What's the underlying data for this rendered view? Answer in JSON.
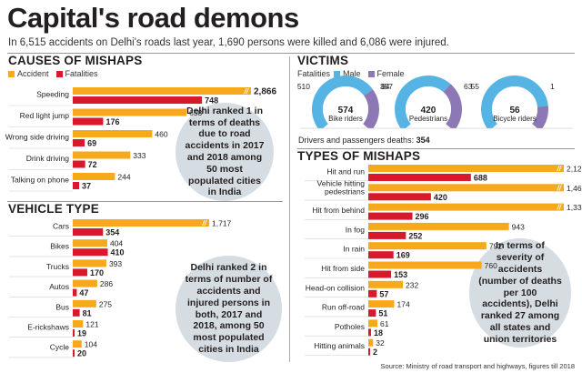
{
  "title": "Capital's road demons",
  "subtitle": "In 6,515 accidents on Delhi's roads last year, 1,690 persons were killed and 6,086 were injured.",
  "colors": {
    "accident": "#f7a81b",
    "fatality": "#d7192b",
    "male": "#56b4e4",
    "female": "#8c78b4",
    "circle": "#d6dde2"
  },
  "legend": {
    "accident": "Accident",
    "fatalities": "Fatalities",
    "victims_fatalities": "Fatalities",
    "male": "Male",
    "female": "Female"
  },
  "notes": {
    "causes": "Delhi ranked 1 in terms of deaths due to road accidents in 2017 and 2018 among 50 most populated cities in India",
    "vehicle": "Delhi ranked 2 in terms of number of accidents and injured persons in both, 2017 and 2018, among 50 most populated cities in India",
    "mishaps": "In terms of severity of accidents (number of deaths per 100 accidents), Delhi ranked 27 among all states and union territories"
  },
  "drivers_note": {
    "label": "Drivers and passengers deaths:",
    "value": "354"
  },
  "source": "Source: Ministry of road transport and highways, figures till 2018",
  "chart_data": [
    {
      "type": "bar",
      "title": "CAUSES OF MISHAPS",
      "categories": [
        "Speeding",
        "Red light jump",
        "Wrong side driving",
        "Drink driving",
        "Talking on phone"
      ],
      "series": [
        {
          "name": "Accident",
          "values": [
            2866,
            658,
            460,
            333,
            244
          ],
          "labels": [
            "2,866",
            "658",
            "460",
            "333",
            "244"
          ]
        },
        {
          "name": "Fatalities",
          "values": [
            748,
            176,
            69,
            72,
            37
          ],
          "labels": [
            "748",
            "176",
            "69",
            "72",
            "37"
          ]
        }
      ]
    },
    {
      "type": "bar",
      "title": "VEHICLE TYPE",
      "categories": [
        "Cars",
        "Bikes",
        "Trucks",
        "Autos",
        "Bus",
        "E-rickshaws",
        "Cycle"
      ],
      "series": [
        {
          "name": "Accident",
          "values": [
            1717,
            404,
            393,
            286,
            275,
            121,
            104
          ],
          "labels": [
            "1,717",
            "404",
            "393",
            "286",
            "275",
            "121",
            "104"
          ]
        },
        {
          "name": "Fatalities",
          "values": [
            354,
            410,
            170,
            47,
            81,
            19,
            20
          ],
          "labels": [
            "354",
            "410",
            "170",
            "47",
            "81",
            "19",
            "20"
          ]
        }
      ]
    },
    {
      "type": "pie",
      "title": "VICTIMS",
      "groups": [
        {
          "label": "Bike riders",
          "total": "574",
          "male": 510,
          "female": 64,
          "male_label": "510",
          "female_label": "64"
        },
        {
          "label": "Pedestrians",
          "total": "420",
          "male": 357,
          "female": 63,
          "male_label": "357",
          "female_label": "63"
        },
        {
          "label": "Bicycle riders",
          "total": "56",
          "male": 55,
          "female": 1,
          "male_label": "55",
          "female_label": "1"
        }
      ]
    },
    {
      "type": "bar",
      "title": "TYPES OF MISHAPS",
      "categories": [
        "Hit and run",
        "Vehicle hitting pedestrians",
        "Hit from behind",
        "In fog",
        "In rain",
        "Hit from side",
        "Head-on collision",
        "Run off-road",
        "Potholes",
        "Hitting animals"
      ],
      "series": [
        {
          "name": "Accident",
          "values": [
            2127,
            1467,
            1337,
            943,
            792,
            760,
            232,
            174,
            61,
            32
          ],
          "labels": [
            "2,127",
            "1,467",
            "1,337",
            "943",
            "792",
            "760",
            "232",
            "174",
            "61",
            "32"
          ]
        },
        {
          "name": "Fatalities",
          "values": [
            688,
            420,
            296,
            252,
            169,
            153,
            57,
            51,
            18,
            2
          ],
          "labels": [
            "688",
            "420",
            "296",
            "252",
            "169",
            "153",
            "57",
            "51",
            "18",
            "2"
          ]
        }
      ]
    }
  ]
}
